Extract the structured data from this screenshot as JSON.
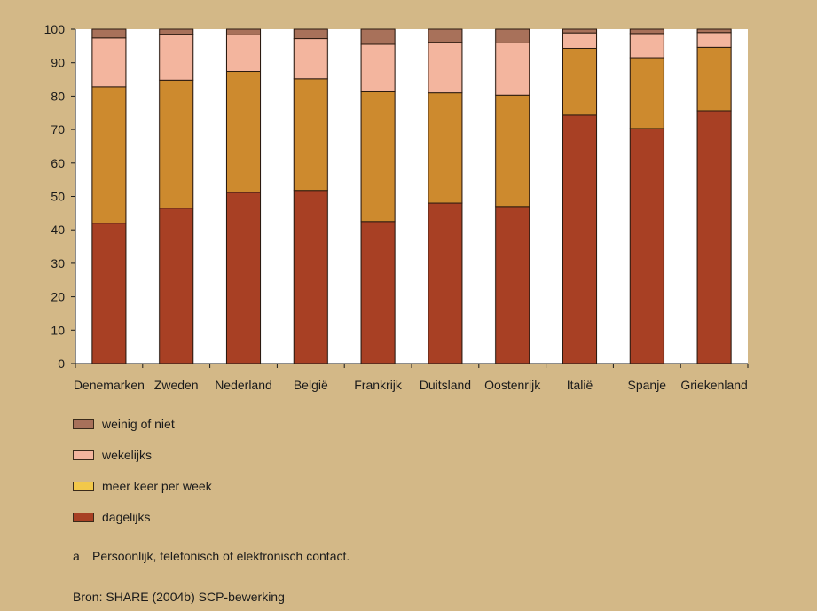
{
  "chart_data": {
    "type": "bar",
    "stacked": true,
    "categories": [
      "Denemarken",
      "Zweden",
      "Nederland",
      "België",
      "Frankrijk",
      "Duitsland",
      "Oostenrijk",
      "Italië",
      "Spanje",
      "Griekenland"
    ],
    "series": [
      {
        "name": "dagelijks",
        "color": "#a84024",
        "values": [
          42,
          46.5,
          51.2,
          51.8,
          42.5,
          48,
          47,
          74.3,
          70.3,
          75.6
        ]
      },
      {
        "name": "meer keer per week",
        "color": "#cd8a2e",
        "values": [
          40.8,
          38.3,
          36.2,
          33.4,
          38.8,
          33,
          33.3,
          20,
          21.2,
          19
        ]
      },
      {
        "name": "wekelijks",
        "color": "#f3b59e",
        "values": [
          14.6,
          13.7,
          10.9,
          12,
          14.2,
          15.1,
          15.6,
          4.6,
          7.2,
          4.4
        ]
      },
      {
        "name": "weinig of niet",
        "color": "#a8715a",
        "values": [
          2.6,
          1.5,
          1.7,
          2.8,
          4.5,
          3.9,
          4.1,
          1.1,
          1.3,
          1
        ]
      }
    ],
    "ylim": [
      0,
      100
    ],
    "yticks": [
      0,
      10,
      20,
      30,
      40,
      50,
      60,
      70,
      80,
      90,
      100
    ],
    "legend_placement": "bottom-left",
    "grid": false
  },
  "legend": [
    {
      "label": "weinig of niet",
      "color": "#a8715a"
    },
    {
      "label": "wekelijks",
      "color": "#f3b59e"
    },
    {
      "label": "meer keer per week",
      "color": "#f2c84a"
    },
    {
      "label": "dagelijks",
      "color": "#a84024"
    }
  ],
  "footnote": {
    "marker": "a",
    "text": "Persoonlijk, telefonisch of elektronisch contact."
  },
  "source": "Bron: SHARE (2004b) SCP-bewerking",
  "colors": {
    "background": "#d3b887",
    "plot_area": "#ffffff",
    "stripe": "#dbdbdb"
  }
}
